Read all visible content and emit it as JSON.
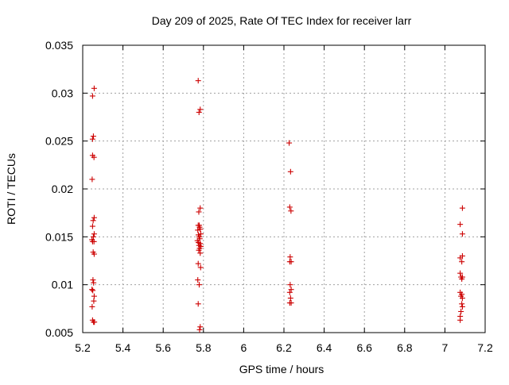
{
  "chart_data": {
    "type": "scatter",
    "title": "Day 209 of 2025, Rate Of TEC Index for receiver larr",
    "xlabel": "GPS time / hours",
    "ylabel": "ROTI / TECUs",
    "xlim": [
      5.2,
      7.2
    ],
    "ylim": [
      0.005,
      0.035
    ],
    "xticks": [
      "5.2",
      "5.4",
      "5.6",
      "5.8",
      "6",
      "6.2",
      "6.4",
      "6.6",
      "6.8",
      "7",
      "7.2"
    ],
    "yticks": [
      "0.005",
      "0.01",
      "0.015",
      "0.02",
      "0.025",
      "0.03",
      "0.035"
    ],
    "grid": true,
    "marker": "+",
    "color": "#cc0000",
    "series": [
      {
        "points": [
          [
            5.257,
            0.0305
          ],
          [
            5.249,
            0.0297
          ],
          [
            5.253,
            0.0255
          ],
          [
            5.249,
            0.0252
          ],
          [
            5.249,
            0.0235
          ],
          [
            5.256,
            0.0233
          ],
          [
            5.247,
            0.021
          ],
          [
            5.257,
            0.017
          ],
          [
            5.252,
            0.0167
          ],
          [
            5.249,
            0.0161
          ],
          [
            5.257,
            0.0153
          ],
          [
            5.253,
            0.015
          ],
          [
            5.246,
            0.0147
          ],
          [
            5.249,
            0.0145
          ],
          [
            5.256,
            0.0145
          ],
          [
            5.252,
            0.0134
          ],
          [
            5.257,
            0.0132
          ],
          [
            5.251,
            0.0105
          ],
          [
            5.254,
            0.0102
          ],
          [
            5.246,
            0.0095
          ],
          [
            5.25,
            0.0094
          ],
          [
            5.257,
            0.0088
          ],
          [
            5.255,
            0.0083
          ],
          [
            5.247,
            0.0077
          ],
          [
            5.249,
            0.0063
          ],
          [
            5.254,
            0.0061
          ],
          [
            5.258,
            0.0061
          ],
          [
            5.774,
            0.0313
          ],
          [
            5.784,
            0.0283
          ],
          [
            5.778,
            0.028
          ],
          [
            5.784,
            0.018
          ],
          [
            5.777,
            0.0176
          ],
          [
            5.774,
            0.0162
          ],
          [
            5.779,
            0.0162
          ],
          [
            5.781,
            0.016
          ],
          [
            5.784,
            0.0158
          ],
          [
            5.772,
            0.0157
          ],
          [
            5.787,
            0.0153
          ],
          [
            5.775,
            0.0152
          ],
          [
            5.779,
            0.015
          ],
          [
            5.782,
            0.0148
          ],
          [
            5.77,
            0.0146
          ],
          [
            5.775,
            0.0144
          ],
          [
            5.784,
            0.0143
          ],
          [
            5.778,
            0.0141
          ],
          [
            5.787,
            0.014
          ],
          [
            5.781,
            0.0138
          ],
          [
            5.777,
            0.0136
          ],
          [
            5.784,
            0.0133
          ],
          [
            5.774,
            0.0122
          ],
          [
            5.786,
            0.0118
          ],
          [
            5.772,
            0.0105
          ],
          [
            5.779,
            0.01
          ],
          [
            5.774,
            0.008
          ],
          [
            5.784,
            0.0056
          ],
          [
            5.781,
            0.0053
          ],
          [
            6.226,
            0.0248
          ],
          [
            6.233,
            0.0218
          ],
          [
            6.229,
            0.0181
          ],
          [
            6.235,
            0.0177
          ],
          [
            6.231,
            0.0129
          ],
          [
            6.229,
            0.0124
          ],
          [
            6.236,
            0.0124
          ],
          [
            6.231,
            0.01
          ],
          [
            6.236,
            0.0095
          ],
          [
            6.229,
            0.0092
          ],
          [
            6.233,
            0.0086
          ],
          [
            6.229,
            0.0081
          ],
          [
            6.236,
            0.0081
          ],
          [
            7.087,
            0.018
          ],
          [
            7.076,
            0.0163
          ],
          [
            7.087,
            0.0153
          ],
          [
            7.087,
            0.013
          ],
          [
            7.076,
            0.0128
          ],
          [
            7.084,
            0.0124
          ],
          [
            7.076,
            0.0112
          ],
          [
            7.08,
            0.0108
          ],
          [
            7.087,
            0.0108
          ],
          [
            7.084,
            0.0106
          ],
          [
            7.076,
            0.0092
          ],
          [
            7.084,
            0.009
          ],
          [
            7.08,
            0.0088
          ],
          [
            7.087,
            0.0086
          ],
          [
            7.084,
            0.008
          ],
          [
            7.087,
            0.0077
          ],
          [
            7.08,
            0.0072
          ],
          [
            7.076,
            0.0067
          ],
          [
            7.076,
            0.0063
          ]
        ]
      }
    ]
  }
}
